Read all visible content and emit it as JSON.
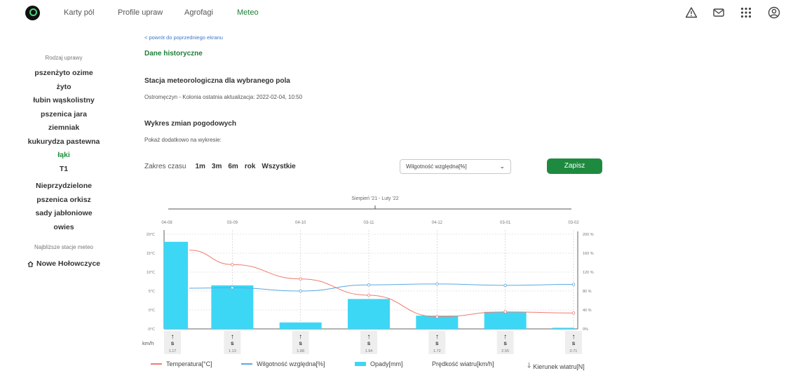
{
  "nav": {
    "items": [
      {
        "label": "Karty pól",
        "active": false
      },
      {
        "label": "Profile upraw",
        "active": false
      },
      {
        "label": "Agrofagi",
        "active": false
      },
      {
        "label": "Meteo",
        "active": true
      }
    ],
    "icons": [
      "warning-icon",
      "mail-icon",
      "apps-grid-icon",
      "account-icon"
    ]
  },
  "sidebar": {
    "crop_section": "Rodzaj uprawy",
    "crops": [
      {
        "label": "pszenżyto ozime",
        "active": false
      },
      {
        "label": "żyto",
        "active": false
      },
      {
        "label": "łubin wąskolistny",
        "active": false
      },
      {
        "label": "pszenica jara",
        "active": false
      },
      {
        "label": "ziemniak",
        "active": false
      },
      {
        "label": "kukurydza pastewna",
        "active": false
      },
      {
        "label": "łąki",
        "active": true
      },
      {
        "label": "T1",
        "active": false
      }
    ],
    "other_crops": [
      "Nieprzydzielone",
      "pszenica orkisz",
      "sady jabłoniowe",
      "owies"
    ],
    "stations_section": "Najbliższe stacje meteo",
    "station": "Nowe Hołowczyce"
  },
  "main": {
    "back_link": "< powrót do poprzedniego ekranu",
    "title": "Dane historyczne",
    "station_heading": "Stacja meteorologiczna dla wybranego pola",
    "station_info": "Ostromęczyn - Kolonia ostatnia aktualizacja: 2022-02-04, 10:50",
    "chart_heading": "Wykres zmian pogodowych",
    "extra_label": "Pokaż dodatkowo na wykresie:",
    "range_label": "Zakres czasu",
    "range_options": [
      "1m",
      "3m",
      "6m",
      "rok",
      "Wszystkie"
    ],
    "range_active": "6m",
    "select_value": "Wilgotność względna[%]",
    "save_label": "Zapisz"
  },
  "chart_data": {
    "type": "bar",
    "period_label": "Sierpień '21 - Luty '22",
    "categories": [
      "04-08",
      "03-09",
      "04-10",
      "03-11",
      "04-12",
      "03-01",
      "03-02"
    ],
    "temp_ticks": [
      "20°C",
      "15°C",
      "10°C",
      "5°C",
      "0°C",
      "-5°C"
    ],
    "temp_range": [
      -5,
      20
    ],
    "pct_ticks": [
      "200 %",
      "160 %",
      "120 %",
      "80 %",
      "40 %",
      "0%"
    ],
    "pct_range": [
      0,
      200
    ],
    "series": [
      {
        "name": "Opady[mm]",
        "kind": "bar",
        "color": "#3dd7f6",
        "values": [
          18,
          6.5,
          -3.3,
          2.9,
          -1.5,
          -0.5,
          -4.7
        ]
      },
      {
        "name": "Temperatura[°C]",
        "kind": "line",
        "color": "#f07b70",
        "values": [
          15.8,
          12,
          8.2,
          3.9,
          -1.8,
          -0.5,
          -0.8
        ]
      },
      {
        "name": "Wilgotność względna[%]",
        "kind": "line",
        "color": "#5aa9e0",
        "values": [
          86,
          87,
          80,
          93,
          95,
          92,
          94
        ]
      }
    ],
    "wind": {
      "unit_label": "km/h",
      "direction": [
        "S",
        "S",
        "S",
        "S",
        "S",
        "S",
        "S"
      ],
      "speed": [
        "1.17",
        "1.13",
        "1.88",
        "1.94",
        "1.72",
        "2.55",
        "0.71"
      ]
    },
    "legend": [
      "Temperatura[°C]",
      "Wilgotność względna[%]",
      "Opady[mm]",
      "Prędkość wiatru[km/h]",
      "Kierunek wiatru[N]"
    ]
  }
}
